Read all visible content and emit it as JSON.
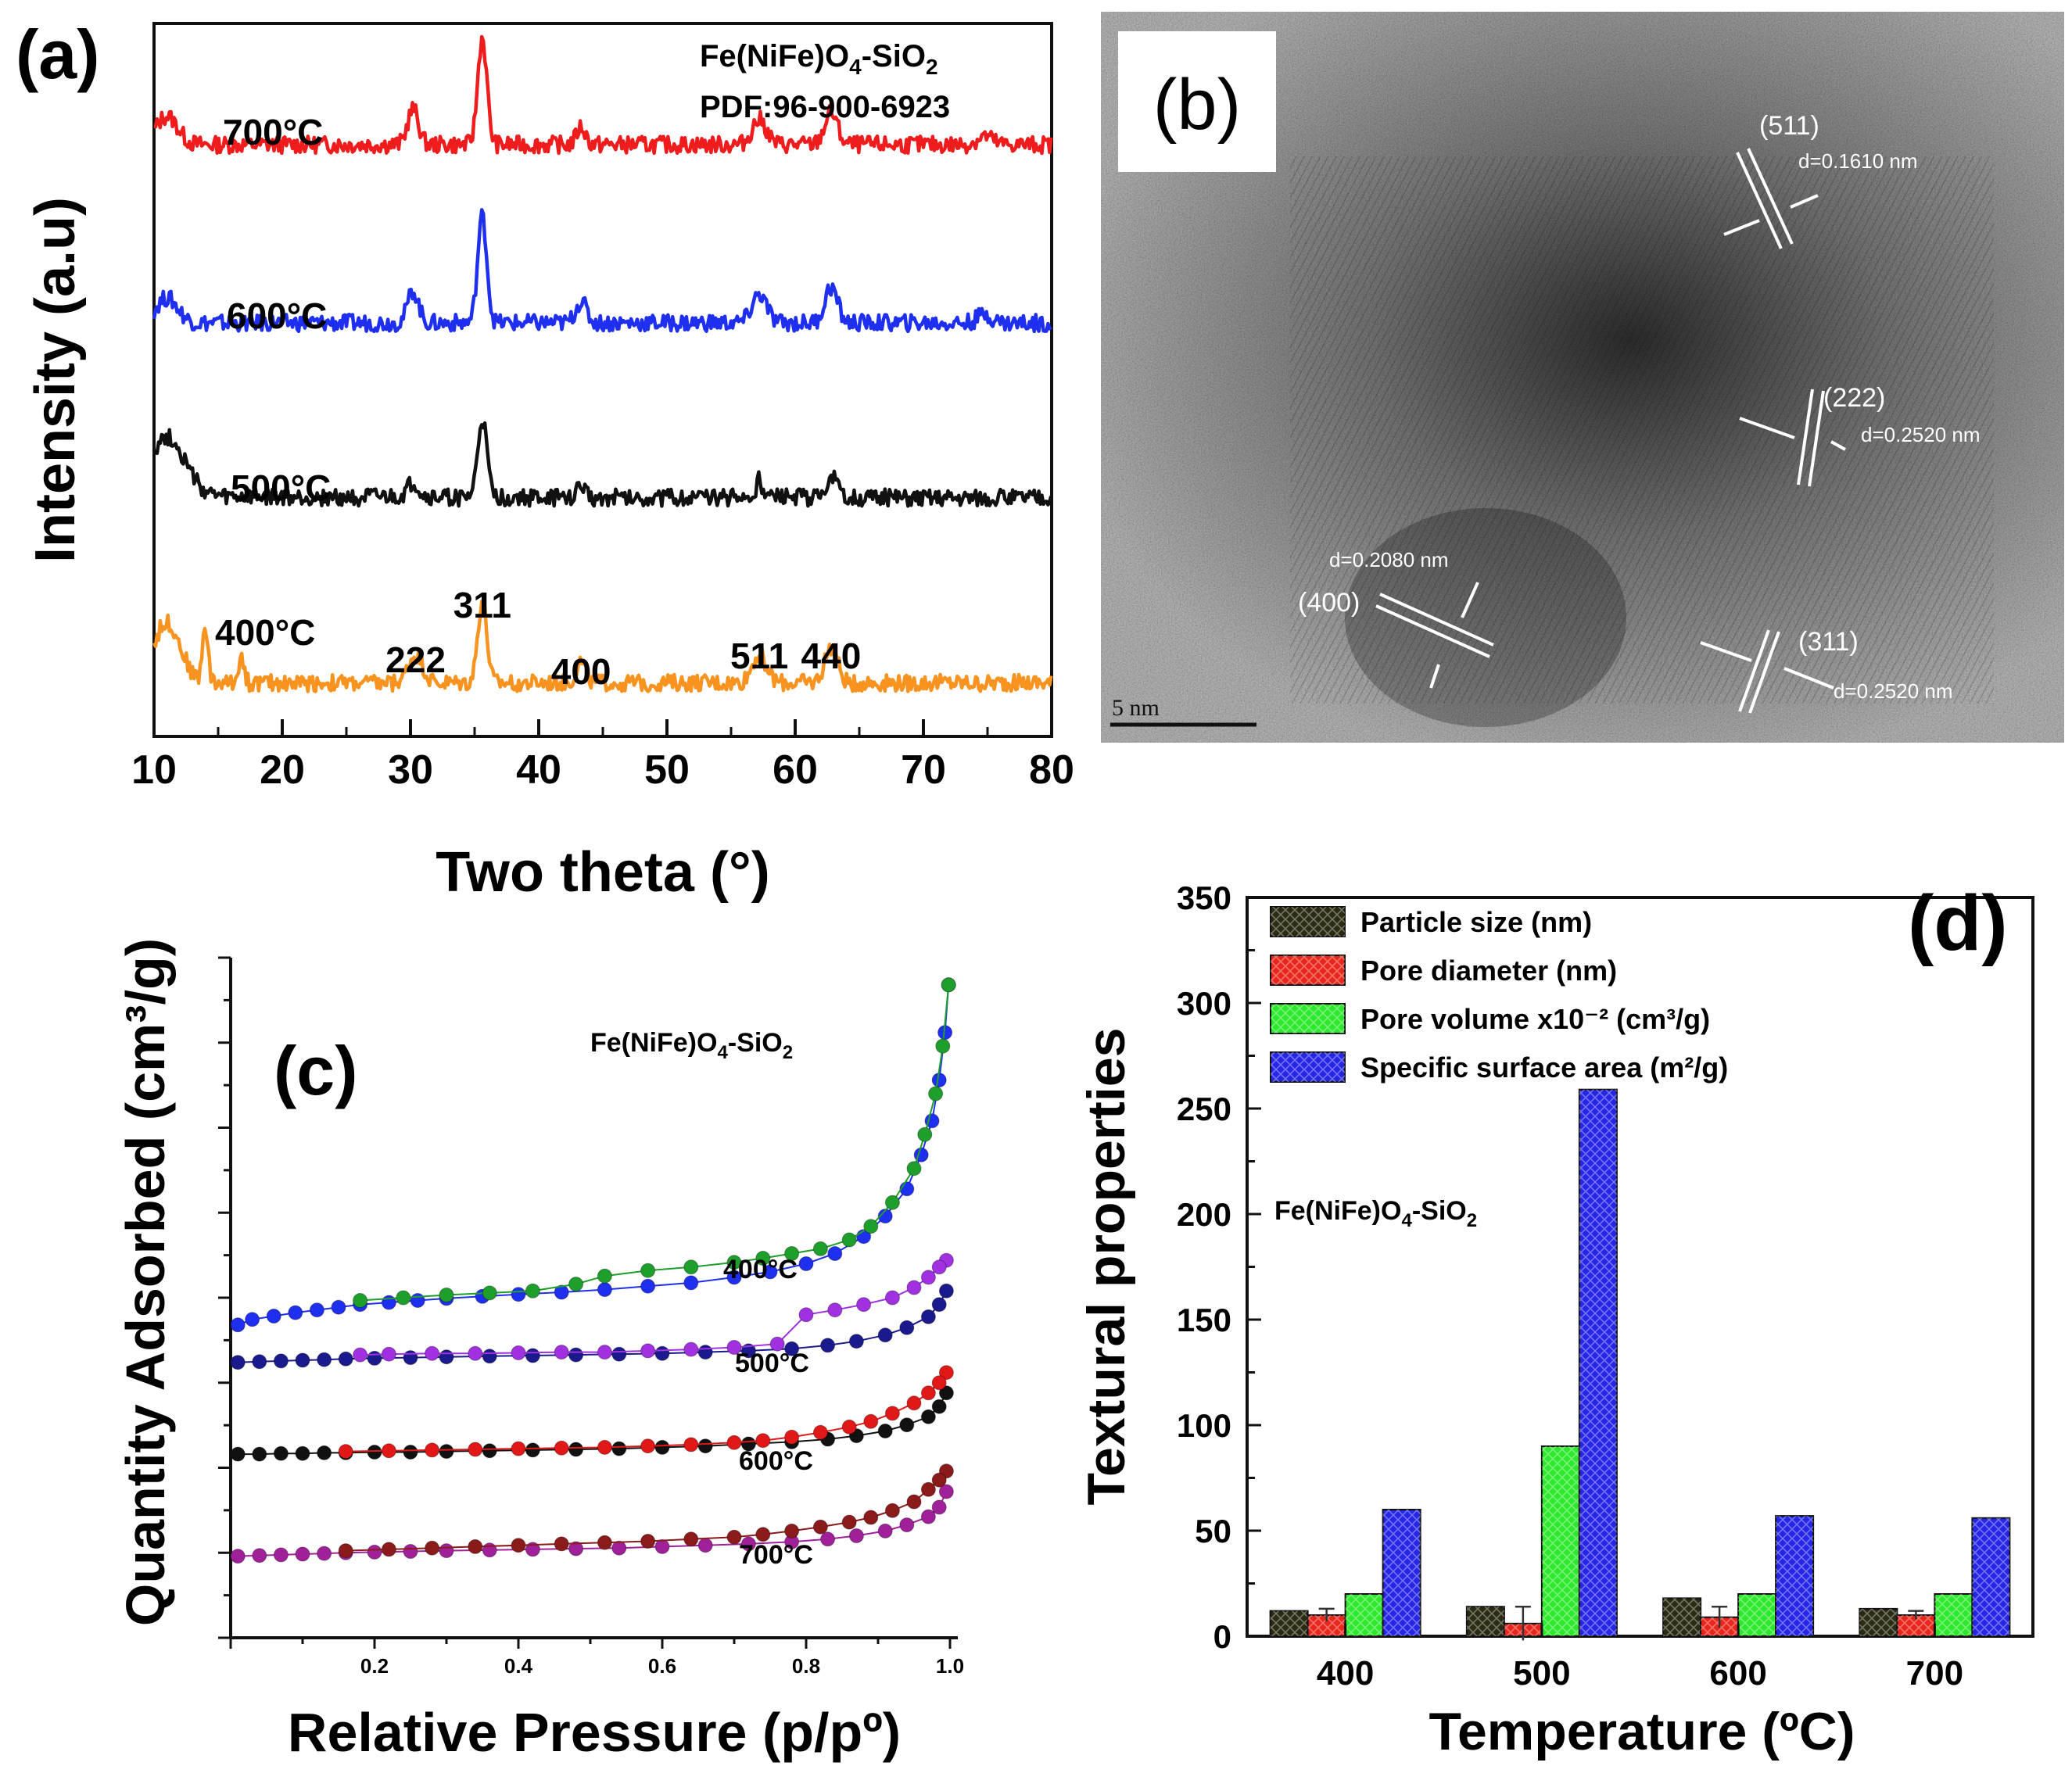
{
  "chart_data": [
    {
      "panel": "a",
      "type": "line",
      "panel_label": "(a)",
      "xlabel": "Two theta (°)",
      "ylabel": "Intensity (a.u)",
      "xlim": [
        10,
        80
      ],
      "xticks": [
        "10",
        "20",
        "30",
        "40",
        "50",
        "60",
        "70",
        "80"
      ],
      "legend_lines": [
        "Fe(NiFe)O4-SiO2",
        "PDF:96-900-6923"
      ],
      "peak_labels": [
        {
          "text": "222",
          "x": 30.4
        },
        {
          "text": "311",
          "x": 35.6
        },
        {
          "text": "400",
          "x": 43.3
        },
        {
          "text": "511",
          "x": 57.2
        },
        {
          "text": "440",
          "x": 62.8
        }
      ],
      "series": [
        {
          "name": "700°C",
          "color": "#ee1c1c",
          "baseline": 0.83,
          "noise": 0.012,
          "peaks": [
            [
              11,
              0.04,
              1.2
            ],
            [
              30.2,
              0.05,
              0.6
            ],
            [
              35.6,
              0.15,
              0.5
            ],
            [
              43.3,
              0.025,
              0.5
            ],
            [
              57.2,
              0.035,
              0.8
            ],
            [
              62.8,
              0.045,
              0.7
            ],
            [
              74.8,
              0.012,
              0.8
            ]
          ]
        },
        {
          "name": "600°C",
          "color": "#1f2ff0",
          "baseline": 0.58,
          "noise": 0.012,
          "peaks": [
            [
              11,
              0.035,
              1.2
            ],
            [
              30.2,
              0.045,
              0.6
            ],
            [
              35.6,
              0.15,
              0.5
            ],
            [
              43.3,
              0.03,
              0.6
            ],
            [
              57.2,
              0.04,
              0.8
            ],
            [
              62.8,
              0.05,
              0.7
            ],
            [
              74.8,
              0.012,
              0.8
            ]
          ]
        },
        {
          "name": "500°C",
          "color": "#111111",
          "baseline": 0.335,
          "noise": 0.012,
          "peaks": [
            [
              11,
              0.085,
              2.0
            ],
            [
              30.2,
              0.02,
              0.6
            ],
            [
              35.6,
              0.11,
              0.5
            ],
            [
              43.3,
              0.015,
              0.5
            ],
            [
              57.2,
              0.025,
              0.3
            ],
            [
              62.8,
              0.03,
              0.6
            ]
          ]
        },
        {
          "name": "400°C",
          "color": "#f7931e",
          "baseline": 0.075,
          "noise": 0.012,
          "peaks": [
            [
              11,
              0.085,
              1.5
            ],
            [
              14,
              0.08,
              0.3
            ],
            [
              16.8,
              0.04,
              0.3
            ],
            [
              30.4,
              0.04,
              0.8
            ],
            [
              35.6,
              0.115,
              0.5
            ],
            [
              43.3,
              0.03,
              0.5
            ],
            [
              57.2,
              0.04,
              0.8
            ],
            [
              62.8,
              0.05,
              0.7
            ]
          ]
        }
      ]
    },
    {
      "panel": "b",
      "type": "image",
      "panel_label": "(b)",
      "scale_bar": "5 nm",
      "annotations": [
        {
          "plane": "(511)",
          "spacing": "d=0.1610 nm"
        },
        {
          "plane": "(222)",
          "spacing": "d=0.2520 nm"
        },
        {
          "plane": "(400)",
          "spacing": "d=0.2080 nm"
        },
        {
          "plane": "(311)",
          "spacing": "d=0.2520 nm"
        }
      ]
    },
    {
      "panel": "c",
      "type": "scatter",
      "panel_label": "(c)",
      "xlabel": "Relative Pressure (p/pº)",
      "ylabel": "Quantity Adsorbed (cm³/g)",
      "xlim": [
        0,
        1.0
      ],
      "xticks": [
        "0.2",
        "0.4",
        "0.6",
        "0.8",
        "1.0"
      ],
      "inset_label": "Fe(NiFe)O4-SiO2",
      "series": [
        {
          "name": "400°C",
          "ads_color": "#1f2ff0",
          "des_color": "#1e9e2a",
          "adsorption": [
            [
              0.01,
              0.46
            ],
            [
              0.03,
              0.468
            ],
            [
              0.06,
              0.473
            ],
            [
              0.09,
              0.478
            ],
            [
              0.12,
              0.482
            ],
            [
              0.15,
              0.486
            ],
            [
              0.18,
              0.49
            ],
            [
              0.22,
              0.493
            ],
            [
              0.26,
              0.496
            ],
            [
              0.3,
              0.499
            ],
            [
              0.35,
              0.502
            ],
            [
              0.4,
              0.505
            ],
            [
              0.46,
              0.508
            ],
            [
              0.52,
              0.512
            ],
            [
              0.58,
              0.517
            ],
            [
              0.64,
              0.522
            ],
            [
              0.7,
              0.53
            ],
            [
              0.75,
              0.538
            ],
            [
              0.8,
              0.55
            ],
            [
              0.84,
              0.565
            ],
            [
              0.88,
              0.59
            ],
            [
              0.91,
              0.62
            ],
            [
              0.94,
              0.66
            ],
            [
              0.96,
              0.71
            ],
            [
              0.975,
              0.76
            ],
            [
              0.985,
              0.82
            ],
            [
              0.993,
              0.89
            ],
            [
              0.998,
              0.96
            ]
          ],
          "desorption": [
            [
              0.998,
              0.96
            ],
            [
              0.99,
              0.87
            ],
            [
              0.98,
              0.8
            ],
            [
              0.965,
              0.74
            ],
            [
              0.95,
              0.69
            ],
            [
              0.92,
              0.64
            ],
            [
              0.89,
              0.605
            ],
            [
              0.86,
              0.585
            ],
            [
              0.82,
              0.572
            ],
            [
              0.78,
              0.565
            ],
            [
              0.74,
              0.558
            ],
            [
              0.7,
              0.552
            ],
            [
              0.64,
              0.545
            ],
            [
              0.58,
              0.54
            ],
            [
              0.52,
              0.532
            ],
            [
              0.48,
              0.52
            ],
            [
              0.42,
              0.51
            ],
            [
              0.36,
              0.507
            ],
            [
              0.3,
              0.504
            ],
            [
              0.24,
              0.5
            ],
            [
              0.18,
              0.496
            ]
          ]
        },
        {
          "name": "500°C",
          "ads_color": "#1a1a8c",
          "des_color": "#a030e0",
          "adsorption": [
            [
              0.01,
              0.405
            ],
            [
              0.04,
              0.406
            ],
            [
              0.07,
              0.407
            ],
            [
              0.1,
              0.408
            ],
            [
              0.13,
              0.409
            ],
            [
              0.16,
              0.41
            ],
            [
              0.2,
              0.411
            ],
            [
              0.25,
              0.412
            ],
            [
              0.3,
              0.413
            ],
            [
              0.36,
              0.414
            ],
            [
              0.42,
              0.415
            ],
            [
              0.48,
              0.416
            ],
            [
              0.54,
              0.417
            ],
            [
              0.6,
              0.418
            ],
            [
              0.66,
              0.42
            ],
            [
              0.72,
              0.422
            ],
            [
              0.78,
              0.425
            ],
            [
              0.83,
              0.43
            ],
            [
              0.87,
              0.436
            ],
            [
              0.91,
              0.445
            ],
            [
              0.94,
              0.456
            ],
            [
              0.97,
              0.472
            ],
            [
              0.985,
              0.49
            ],
            [
              0.995,
              0.51
            ]
          ],
          "desorption": [
            [
              0.995,
              0.555
            ],
            [
              0.985,
              0.545
            ],
            [
              0.97,
              0.53
            ],
            [
              0.95,
              0.515
            ],
            [
              0.92,
              0.5
            ],
            [
              0.88,
              0.49
            ],
            [
              0.84,
              0.482
            ],
            [
              0.8,
              0.475
            ],
            [
              0.76,
              0.432
            ],
            [
              0.7,
              0.427
            ],
            [
              0.64,
              0.424
            ],
            [
              0.58,
              0.422
            ],
            [
              0.52,
              0.42
            ],
            [
              0.46,
              0.42
            ],
            [
              0.4,
              0.419
            ],
            [
              0.34,
              0.418
            ],
            [
              0.28,
              0.418
            ],
            [
              0.22,
              0.417
            ],
            [
              0.18,
              0.416
            ]
          ]
        },
        {
          "name": "600°C",
          "ads_color": "#111111",
          "des_color": "#e01818",
          "adsorption": [
            [
              0.01,
              0.27
            ],
            [
              0.04,
              0.27
            ],
            [
              0.07,
              0.271
            ],
            [
              0.1,
              0.271
            ],
            [
              0.13,
              0.272
            ],
            [
              0.16,
              0.272
            ],
            [
              0.2,
              0.273
            ],
            [
              0.25,
              0.273
            ],
            [
              0.3,
              0.274
            ],
            [
              0.36,
              0.275
            ],
            [
              0.42,
              0.276
            ],
            [
              0.48,
              0.277
            ],
            [
              0.54,
              0.278
            ],
            [
              0.6,
              0.28
            ],
            [
              0.66,
              0.282
            ],
            [
              0.72,
              0.285
            ],
            [
              0.78,
              0.288
            ],
            [
              0.83,
              0.292
            ],
            [
              0.87,
              0.297
            ],
            [
              0.91,
              0.304
            ],
            [
              0.94,
              0.313
            ],
            [
              0.97,
              0.325
            ],
            [
              0.985,
              0.34
            ],
            [
              0.995,
              0.36
            ]
          ],
          "desorption": [
            [
              0.995,
              0.39
            ],
            [
              0.985,
              0.375
            ],
            [
              0.97,
              0.36
            ],
            [
              0.95,
              0.345
            ],
            [
              0.92,
              0.33
            ],
            [
              0.89,
              0.318
            ],
            [
              0.86,
              0.31
            ],
            [
              0.82,
              0.302
            ],
            [
              0.78,
              0.295
            ],
            [
              0.74,
              0.29
            ],
            [
              0.7,
              0.287
            ],
            [
              0.64,
              0.284
            ],
            [
              0.58,
              0.282
            ],
            [
              0.52,
              0.28
            ],
            [
              0.46,
              0.279
            ],
            [
              0.4,
              0.278
            ],
            [
              0.34,
              0.277
            ],
            [
              0.28,
              0.276
            ],
            [
              0.22,
              0.275
            ],
            [
              0.16,
              0.274
            ]
          ]
        },
        {
          "name": "700°C",
          "ads_color": "#a0209a",
          "des_color": "#8b1a1a",
          "adsorption": [
            [
              0.01,
              0.12
            ],
            [
              0.04,
              0.121
            ],
            [
              0.07,
              0.122
            ],
            [
              0.1,
              0.123
            ],
            [
              0.13,
              0.124
            ],
            [
              0.16,
              0.125
            ],
            [
              0.2,
              0.126
            ],
            [
              0.25,
              0.127
            ],
            [
              0.3,
              0.128
            ],
            [
              0.36,
              0.129
            ],
            [
              0.42,
              0.13
            ],
            [
              0.48,
              0.131
            ],
            [
              0.54,
              0.132
            ],
            [
              0.6,
              0.134
            ],
            [
              0.66,
              0.136
            ],
            [
              0.72,
              0.138
            ],
            [
              0.78,
              0.141
            ],
            [
              0.83,
              0.145
            ],
            [
              0.87,
              0.15
            ],
            [
              0.91,
              0.157
            ],
            [
              0.94,
              0.166
            ],
            [
              0.97,
              0.178
            ],
            [
              0.985,
              0.192
            ],
            [
              0.995,
              0.215
            ]
          ],
          "desorption": [
            [
              0.995,
              0.245
            ],
            [
              0.985,
              0.232
            ],
            [
              0.97,
              0.218
            ],
            [
              0.95,
              0.2
            ],
            [
              0.92,
              0.187
            ],
            [
              0.89,
              0.177
            ],
            [
              0.86,
              0.17
            ],
            [
              0.82,
              0.163
            ],
            [
              0.78,
              0.157
            ],
            [
              0.74,
              0.152
            ],
            [
              0.7,
              0.148
            ],
            [
              0.64,
              0.145
            ],
            [
              0.58,
              0.142
            ],
            [
              0.52,
              0.14
            ],
            [
              0.46,
              0.138
            ],
            [
              0.4,
              0.136
            ],
            [
              0.34,
              0.134
            ],
            [
              0.28,
              0.132
            ],
            [
              0.22,
              0.13
            ],
            [
              0.16,
              0.128
            ]
          ]
        }
      ]
    },
    {
      "panel": "d",
      "type": "bar",
      "panel_label": "(d)",
      "xlabel": "Temperature (ºC)",
      "ylabel": "Textural properties",
      "ylim": [
        0,
        350
      ],
      "yticks": [
        "0",
        "50",
        "100",
        "150",
        "200",
        "250",
        "300",
        "350"
      ],
      "categories": [
        "400",
        "500",
        "600",
        "700"
      ],
      "inset_label": "Fe(NiFe)O4-SiO2",
      "series": [
        {
          "name": "Particle size (nm)",
          "color": "#2b2b14",
          "values": [
            12,
            14,
            18,
            13
          ],
          "errors": [
            0,
            0,
            0,
            0
          ]
        },
        {
          "name": "Pore diameter (nm)",
          "color": "#e8261c",
          "values": [
            10,
            6,
            9,
            10
          ],
          "errors": [
            3,
            8,
            5,
            2
          ]
        },
        {
          "name": "Pore volume x10⁻² (cm³/g)",
          "color": "#2ee82e",
          "values": [
            20,
            90,
            20,
            20
          ],
          "errors": [
            0,
            0,
            0,
            0
          ]
        },
        {
          "name": "Specific surface area (m²/g)",
          "color": "#2626e6",
          "values": [
            60,
            259,
            57,
            56
          ],
          "errors": [
            0,
            0,
            0,
            0
          ]
        }
      ]
    }
  ]
}
